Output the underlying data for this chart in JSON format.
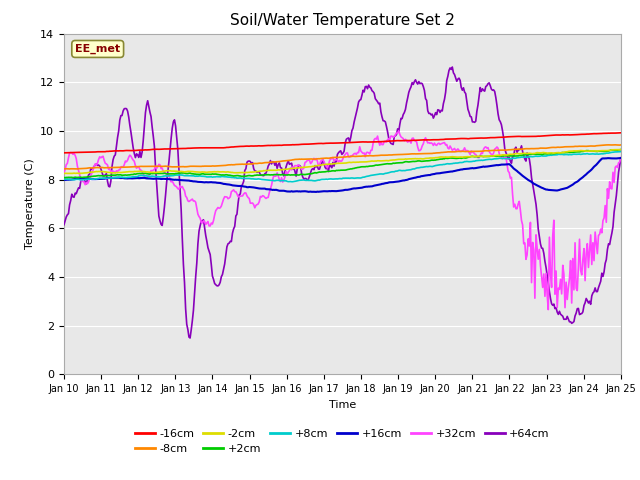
{
  "title": "Soil/Water Temperature Set 2",
  "xlabel": "Time",
  "ylabel": "Temperature (C)",
  "ylim": [
    0,
    14
  ],
  "yticks": [
    0,
    2,
    4,
    6,
    8,
    10,
    12,
    14
  ],
  "xlim": [
    0,
    15
  ],
  "xtick_labels": [
    "Jan 10",
    "Jan 11",
    "Jan 12",
    "Jan 13",
    "Jan 14",
    "Jan 15",
    "Jan 16",
    "Jan 17",
    "Jan 18",
    "Jan 19",
    "Jan 20",
    "Jan 21",
    "Jan 22",
    "Jan 23",
    "Jan 24",
    "Jan 25"
  ],
  "station_label": "EE_met",
  "fig_bg": "#ffffff",
  "plot_bg": "#e8e8e8",
  "series": {
    "m16cm": {
      "color": "#ff0000",
      "label": "-16cm",
      "lw": 1.2
    },
    "m8cm": {
      "color": "#ff8800",
      "label": "-8cm",
      "lw": 1.2
    },
    "m2cm": {
      "color": "#dddd00",
      "label": "-2cm",
      "lw": 1.2
    },
    "p2cm": {
      "color": "#00cc00",
      "label": "+2cm",
      "lw": 1.2
    },
    "p8cm": {
      "color": "#00cccc",
      "label": "+8cm",
      "lw": 1.2
    },
    "p16cm": {
      "color": "#0000cc",
      "label": "+16cm",
      "lw": 1.5
    },
    "p32cm": {
      "color": "#ff44ff",
      "label": "+32cm",
      "lw": 1.2
    },
    "p64cm": {
      "color": "#8800bb",
      "label": "+64cm",
      "lw": 1.2
    }
  },
  "n_points": 500
}
